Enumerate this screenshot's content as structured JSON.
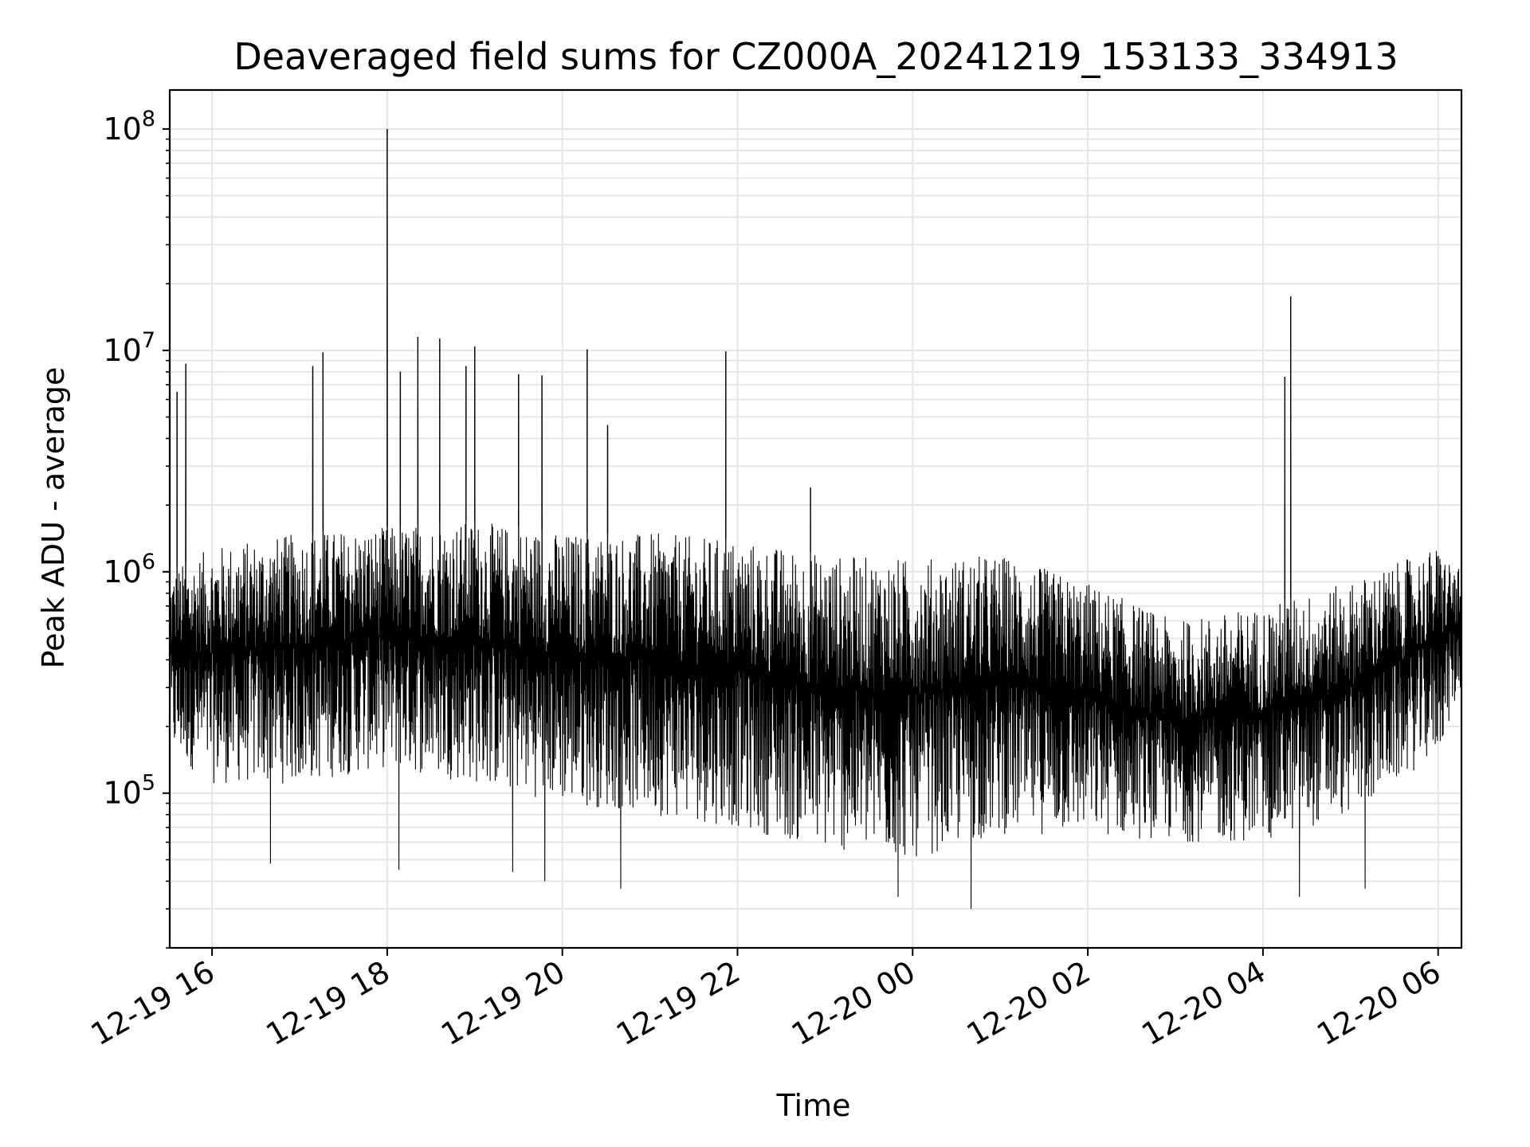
{
  "chart_data": {
    "type": "line",
    "title": "Deaveraged field sums for CZ000A_20241219_153133_334913",
    "xlabel": "Time",
    "ylabel": "Peak ADU - average",
    "yscale": "log",
    "ylim": [
      20000,
      150000000
    ],
    "xlim": [
      "12-19 15:31",
      "12-20 06:16"
    ],
    "grid": true,
    "x_ticks": [
      "12-19 16",
      "12-19 18",
      "12-19 20",
      "12-19 22",
      "12-20 00",
      "12-20 02",
      "12-20 04",
      "12-20 06"
    ],
    "y_ticks": [
      {
        "base": "10",
        "exp": "5",
        "value": 100000
      },
      {
        "base": "10",
        "exp": "6",
        "value": 1000000
      },
      {
        "base": "10",
        "exp": "7",
        "value": 10000000
      },
      {
        "base": "10",
        "exp": "8",
        "value": 100000000
      }
    ],
    "series": [
      {
        "color": "#000000",
        "baseline_by_hour": {
          "x": [
            "12-19 15:31",
            "12-19 16",
            "12-19 17",
            "12-19 18",
            "12-19 19",
            "12-19 20",
            "12-19 21",
            "12-19 22",
            "12-19 23",
            "12-20 00",
            "12-20 01",
            "12-20 02",
            "12-20 03",
            "12-20 04",
            "12-20 05",
            "12-20 06",
            "12-20 06:16"
          ],
          "y_low": [
            150000,
            110000,
            110000,
            130000,
            110000,
            90000,
            80000,
            70000,
            55000,
            50000,
            65000,
            65000,
            60000,
            60000,
            80000,
            150000,
            300000
          ],
          "y_high": [
            1000000,
            1300000,
            1500000,
            1600000,
            1700000,
            1500000,
            1500000,
            1400000,
            1200000,
            1150000,
            1200000,
            900000,
            600000,
            700000,
            900000,
            1300000,
            1000000
          ]
        },
        "spikes": {
          "x": [
            "12-19 15:36",
            "12-19 15:42",
            "12-19 17:09",
            "12-19 17:16",
            "12-19 18:00",
            "12-19 18:09",
            "12-19 18:21",
            "12-19 18:36",
            "12-19 18:54",
            "12-19 19:00",
            "12-19 19:30",
            "12-19 19:46",
            "12-19 20:17",
            "12-19 20:31",
            "12-19 21:52",
            "12-19 22:50",
            "12-20 04:15",
            "12-20 04:19"
          ],
          "y": [
            6500000,
            8700000,
            8500000,
            9800000,
            100000000,
            8000000,
            11500000,
            11300000,
            8500000,
            10400000,
            7800000,
            7700000,
            10100000,
            4600000,
            9900000,
            2400000,
            7600000,
            17500000
          ]
        },
        "dips": {
          "x": [
            "12-19 16:40",
            "12-19 18:08",
            "12-19 19:26",
            "12-19 19:48",
            "12-19 20:40",
            "12-19 23:50",
            "12-20 00:40",
            "12-20 04:25",
            "12-20 05:10"
          ],
          "y": [
            48000,
            45000,
            44000,
            40000,
            37000,
            34000,
            30000,
            34000,
            37000
          ]
        }
      }
    ]
  }
}
